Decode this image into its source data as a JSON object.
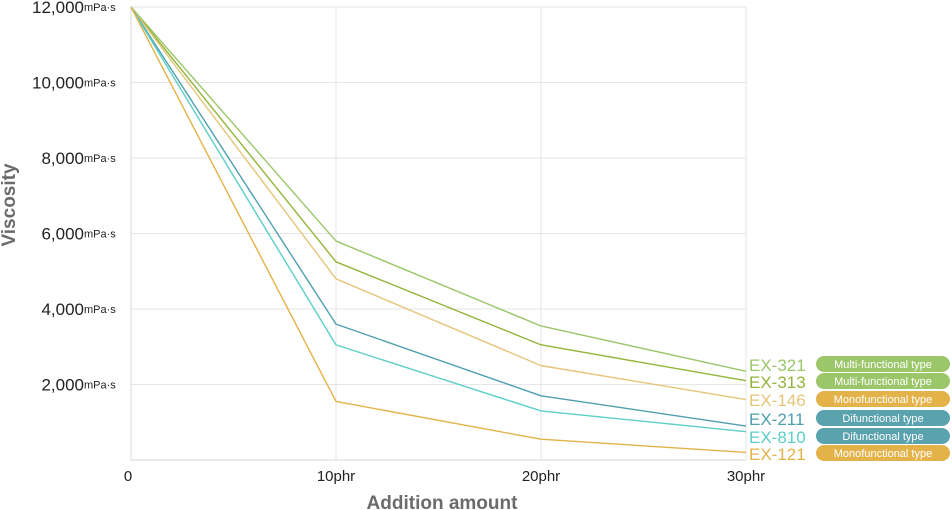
{
  "chart_data": {
    "type": "line",
    "xlabel": "Addition amount",
    "ylabel": "Viscosity",
    "x": [
      "0",
      "10phr",
      "20phr",
      "30phr"
    ],
    "x_values": [
      0,
      10,
      20,
      30
    ],
    "y_ticks": [
      {
        "value": 2000,
        "label": "2,000",
        "unit": "mPa·s"
      },
      {
        "value": 4000,
        "label": "4,000",
        "unit": "mPa·s"
      },
      {
        "value": 6000,
        "label": "6,000",
        "unit": "mPa·s"
      },
      {
        "value": 8000,
        "label": "8,000",
        "unit": "mPa·s"
      },
      {
        "value": 10000,
        "label": "10,000",
        "unit": "mPa·s"
      },
      {
        "value": 12000,
        "label": "12,000",
        "unit": "mPa·s"
      }
    ],
    "xlim": [
      0,
      30
    ],
    "ylim": [
      0,
      12000
    ],
    "grid": true,
    "legend_placement": "right, at line ends",
    "series": [
      {
        "name": "EX-321",
        "type_label": "Multi-functional type",
        "color": "#9cc66a",
        "values": [
          12000,
          5800,
          3550,
          2350
        ]
      },
      {
        "name": "EX-313",
        "type_label": "Multi-functional type",
        "color": "#94b43a",
        "values": [
          12000,
          5250,
          3050,
          2100
        ]
      },
      {
        "name": "EX-146",
        "type_label": "Monofunctional type",
        "color": "#e6c57a",
        "values": [
          12000,
          4800,
          2500,
          1600
        ]
      },
      {
        "name": "EX-211",
        "type_label": "Difunctional type",
        "color": "#4f9fb0",
        "values": [
          12000,
          3600,
          1700,
          900
        ]
      },
      {
        "name": "EX-810",
        "type_label": "Difunctional type",
        "color": "#5ccfc7",
        "values": [
          12000,
          3050,
          1300,
          750
        ]
      },
      {
        "name": "EX-121",
        "type_label": "Monofunctional type",
        "color": "#e3b34a",
        "values": [
          12000,
          1550,
          550,
          200
        ]
      }
    ],
    "badge_colors": {
      "Multi-functional type": "#9cc66a",
      "Monofunctional type": "#e3b34a",
      "Difunctional type": "#5aa2ad"
    },
    "grid_color": "#e6e6e6",
    "axis_color": "#d8d8d8"
  }
}
